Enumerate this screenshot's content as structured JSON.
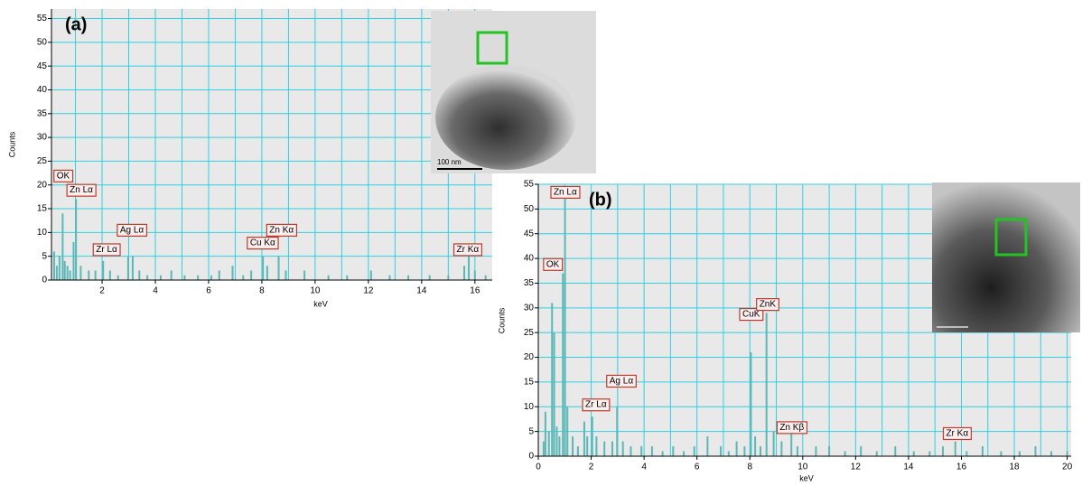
{
  "chart_data": [
    {
      "type": "bar",
      "panel_label": "(a)",
      "y_label": "Counts",
      "x_label": "keV",
      "inset_scale_label": "100 nm",
      "color": "#5bb8b6",
      "grid": true,
      "xlim": [
        0.1,
        16.65
      ],
      "xticks": [
        2,
        4,
        6,
        8,
        10,
        12,
        14,
        16
      ],
      "xminor": [
        1,
        3,
        5,
        7,
        9,
        11,
        13,
        15
      ],
      "ylim": [
        0,
        57
      ],
      "yticks": [
        0,
        5,
        10,
        15,
        20,
        25,
        30,
        35,
        40,
        45,
        50,
        55
      ],
      "x": [
        0.2,
        0.3,
        0.4,
        0.52,
        0.6,
        0.7,
        0.8,
        0.93,
        1.02,
        1.2,
        1.5,
        1.75,
        2.04,
        2.3,
        2.6,
        2.98,
        3.15,
        3.4,
        3.7,
        4.2,
        4.6,
        5.1,
        5.6,
        6.1,
        6.4,
        6.9,
        7.3,
        7.6,
        8.04,
        8.2,
        8.63,
        8.9,
        9.6,
        10.5,
        11.2,
        12.1,
        12.8,
        13.5,
        14.3,
        15.0,
        15.6,
        15.77,
        16.0,
        16.4
      ],
      "values": [
        6,
        3,
        5,
        14,
        4,
        3,
        2,
        8,
        17,
        3,
        2,
        2,
        4,
        2,
        1,
        5,
        5,
        2,
        1,
        1,
        2,
        1,
        1,
        1,
        2,
        3,
        1,
        2,
        5,
        3,
        5,
        2,
        2,
        1,
        1,
        2,
        1,
        1,
        1,
        1,
        3,
        5,
        2,
        1
      ],
      "annotations": [
        {
          "text": "OK",
          "x": 0.54,
          "y": 21.9
        },
        {
          "text": "Zn Lα",
          "x": 1.22,
          "y": 18.9
        },
        {
          "text": "Zr Lα",
          "x": 2.17,
          "y": 6.4
        },
        {
          "text": "Ag Lα",
          "x": 3.12,
          "y": 10.5
        },
        {
          "text": "Cu Kα",
          "x": 8.03,
          "y": 7.8
        },
        {
          "text": "Zn Kα",
          "x": 8.74,
          "y": 10.5
        },
        {
          "text": "Zr Kα",
          "x": 15.73,
          "y": 6.4
        }
      ]
    },
    {
      "type": "bar",
      "panel_label": "(b)",
      "y_label": "Counts",
      "x_label": "keV",
      "color": "#5bb8b6",
      "grid": true,
      "xlim": [
        0,
        20.15
      ],
      "xticks": [
        0,
        2,
        4,
        6,
        8,
        10,
        12,
        14,
        16,
        18,
        20
      ],
      "xminor": [
        1,
        3,
        5,
        7,
        9,
        11,
        13,
        15,
        17,
        19
      ],
      "ylim": [
        0,
        55
      ],
      "yticks": [
        0,
        5,
        10,
        15,
        20,
        25,
        30,
        35,
        40,
        45,
        50,
        55
      ],
      "x": [
        0.2,
        0.27,
        0.4,
        0.52,
        0.6,
        0.7,
        0.8,
        0.93,
        1.01,
        1.1,
        1.3,
        1.5,
        1.74,
        1.85,
        2.04,
        2.2,
        2.5,
        2.8,
        2.98,
        3.2,
        3.5,
        3.9,
        4.3,
        4.7,
        5.1,
        5.5,
        5.9,
        6.4,
        6.9,
        7.2,
        7.5,
        7.8,
        8.04,
        8.2,
        8.4,
        8.63,
        8.9,
        9.2,
        9.57,
        9.8,
        10.5,
        11,
        11.6,
        12.2,
        12.8,
        13.5,
        14.2,
        14.8,
        15.3,
        15.77,
        16.2,
        16.8,
        17.5,
        18.2,
        18.8,
        19.4,
        20
      ],
      "values": [
        3,
        9,
        5,
        31,
        25,
        6,
        4,
        37,
        53,
        10,
        4,
        2,
        7,
        4,
        8,
        4,
        3,
        3,
        10,
        3,
        2,
        2,
        2,
        1,
        2,
        1,
        2,
        4,
        2,
        1,
        3,
        2,
        21,
        4,
        2,
        29,
        5,
        3,
        6,
        2,
        2,
        2,
        1,
        2,
        1,
        2,
        1,
        1,
        2,
        3,
        1,
        2,
        1,
        1,
        2,
        1,
        1
      ],
      "annotations": [
        {
          "text": "OK",
          "x": 0.55,
          "y": 38.8
        },
        {
          "text": "Zn Lα",
          "x": 1.02,
          "y": 53.4
        },
        {
          "text": "Zr Lα",
          "x": 2.18,
          "y": 10.4
        },
        {
          "text": "Ag Lα",
          "x": 3.14,
          "y": 15.2
        },
        {
          "text": "CuK",
          "x": 8.05,
          "y": 28.7
        },
        {
          "text": "ZnK",
          "x": 8.67,
          "y": 30.7
        },
        {
          "text": "Zn Kβ",
          "x": 9.59,
          "y": 5.8
        },
        {
          "text": "Zr Kα",
          "x": 15.84,
          "y": 4.6
        }
      ]
    }
  ]
}
